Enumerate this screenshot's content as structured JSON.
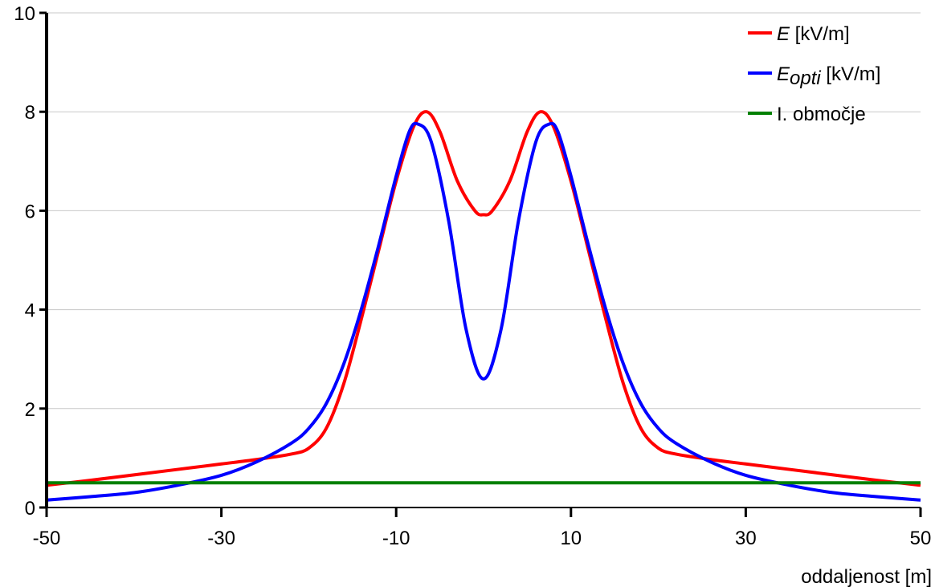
{
  "chart_data": {
    "type": "line",
    "title": "",
    "xlabel": "oddaljenost [m]",
    "ylabel": "",
    "xlim": [
      -50,
      50
    ],
    "ylim": [
      0,
      10
    ],
    "x_ticks": [
      -50,
      -30,
      -10,
      10,
      30,
      50
    ],
    "y_ticks": [
      0,
      2,
      4,
      6,
      8,
      10
    ],
    "x_tick_labels": [
      "-50",
      "-30",
      "-10",
      "10",
      "30",
      "50"
    ],
    "y_tick_labels": [
      "0",
      "2",
      "4",
      "6",
      "8",
      "10"
    ],
    "grid": "horizontal",
    "legend_position": "top-right",
    "colors": {
      "E": "#ff0000",
      "E_opti": "#0000ff",
      "zone": "#008000"
    },
    "series": [
      {
        "name": "E [kV/m]",
        "legend_main": "E",
        "legend_unit": " [kV/m]",
        "color": "#ff0000",
        "points": [
          [
            -50,
            0.45
          ],
          [
            -45,
            0.55
          ],
          [
            -40,
            0.66
          ],
          [
            -35,
            0.77
          ],
          [
            -30,
            0.88
          ],
          [
            -26,
            0.97
          ],
          [
            -22,
            1.08
          ],
          [
            -20,
            1.2
          ],
          [
            -18,
            1.6
          ],
          [
            -16,
            2.5
          ],
          [
            -14,
            3.8
          ],
          [
            -12,
            5.2
          ],
          [
            -10,
            6.6
          ],
          [
            -8,
            7.7
          ],
          [
            -6.5,
            8.0
          ],
          [
            -5,
            7.6
          ],
          [
            -3,
            6.6
          ],
          [
            -1,
            6.0
          ],
          [
            0,
            5.92
          ],
          [
            1,
            6.0
          ],
          [
            3,
            6.6
          ],
          [
            5,
            7.6
          ],
          [
            6.5,
            8.0
          ],
          [
            8,
            7.7
          ],
          [
            10,
            6.6
          ],
          [
            12,
            5.2
          ],
          [
            14,
            3.8
          ],
          [
            16,
            2.5
          ],
          [
            18,
            1.6
          ],
          [
            20,
            1.2
          ],
          [
            22,
            1.08
          ],
          [
            26,
            0.97
          ],
          [
            30,
            0.88
          ],
          [
            35,
            0.77
          ],
          [
            40,
            0.66
          ],
          [
            45,
            0.55
          ],
          [
            50,
            0.45
          ]
        ]
      },
      {
        "name": "E_opti [kV/m]",
        "legend_main": "E",
        "legend_sub": "opti",
        "legend_unit": " [kV/m]",
        "color": "#0000ff",
        "points": [
          [
            -50,
            0.15
          ],
          [
            -45,
            0.22
          ],
          [
            -40,
            0.3
          ],
          [
            -35,
            0.45
          ],
          [
            -30,
            0.65
          ],
          [
            -26,
            0.92
          ],
          [
            -22,
            1.3
          ],
          [
            -20,
            1.6
          ],
          [
            -18,
            2.1
          ],
          [
            -16,
            2.9
          ],
          [
            -14,
            4.0
          ],
          [
            -12,
            5.3
          ],
          [
            -10,
            6.7
          ],
          [
            -8.5,
            7.6
          ],
          [
            -7.5,
            7.75
          ],
          [
            -6,
            7.4
          ],
          [
            -4,
            5.8
          ],
          [
            -2,
            3.6
          ],
          [
            0,
            2.6
          ],
          [
            2,
            3.6
          ],
          [
            4,
            5.8
          ],
          [
            6,
            7.4
          ],
          [
            7.5,
            7.75
          ],
          [
            8.5,
            7.6
          ],
          [
            10,
            6.7
          ],
          [
            12,
            5.3
          ],
          [
            14,
            4.0
          ],
          [
            16,
            2.9
          ],
          [
            18,
            2.1
          ],
          [
            20,
            1.6
          ],
          [
            22,
            1.3
          ],
          [
            26,
            0.92
          ],
          [
            30,
            0.65
          ],
          [
            35,
            0.45
          ],
          [
            40,
            0.3
          ],
          [
            45,
            0.22
          ],
          [
            50,
            0.15
          ]
        ]
      },
      {
        "name": "I. območje",
        "legend_main": "I. območje",
        "color": "#008000",
        "points": [
          [
            -50,
            0.5
          ],
          [
            50,
            0.5
          ]
        ]
      }
    ]
  }
}
